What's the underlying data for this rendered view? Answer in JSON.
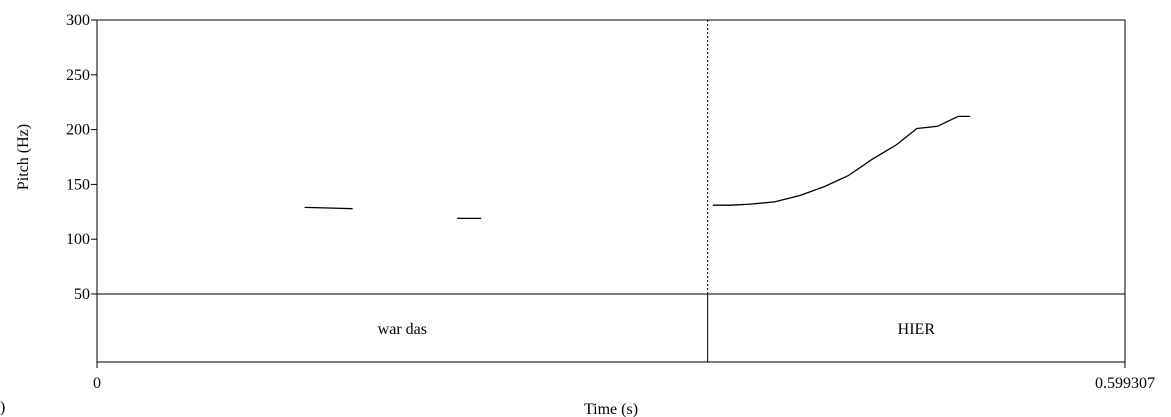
{
  "chart_data": {
    "type": "line",
    "ylabel": "Pitch (Hz)",
    "xlabel": "Time (s)",
    "ylim": [
      0,
      300
    ],
    "y_ticks": [
      50,
      100,
      150,
      200,
      250,
      300
    ],
    "xlim": [
      0,
      0.599307
    ],
    "x_tick_labels": [
      "0",
      "0.599307"
    ],
    "boundary_time": 0.356,
    "series": [
      {
        "segments": [
          [
            [
              0.121,
              129
            ],
            [
              0.135,
              128.5
            ],
            [
              0.149,
              127.8
            ]
          ],
          [
            [
              0.21,
              119
            ],
            [
              0.224,
              119
            ]
          ],
          [
            [
              0.359,
              131
            ],
            [
              0.369,
              131
            ],
            [
              0.381,
              132
            ],
            [
              0.395,
              134
            ],
            [
              0.41,
              140
            ],
            [
              0.424,
              148
            ],
            [
              0.438,
              158
            ],
            [
              0.452,
              173
            ],
            [
              0.466,
              186
            ],
            [
              0.478,
              201
            ],
            [
              0.49,
              203
            ],
            [
              0.502,
              212
            ],
            [
              0.509,
              212
            ]
          ]
        ]
      }
    ],
    "tiers": [
      {
        "label": "war das",
        "start": 0,
        "end": 0.356
      },
      {
        "label": "HIER",
        "start": 0.356,
        "end": 0.599307
      }
    ]
  },
  "corner_mark": ")"
}
